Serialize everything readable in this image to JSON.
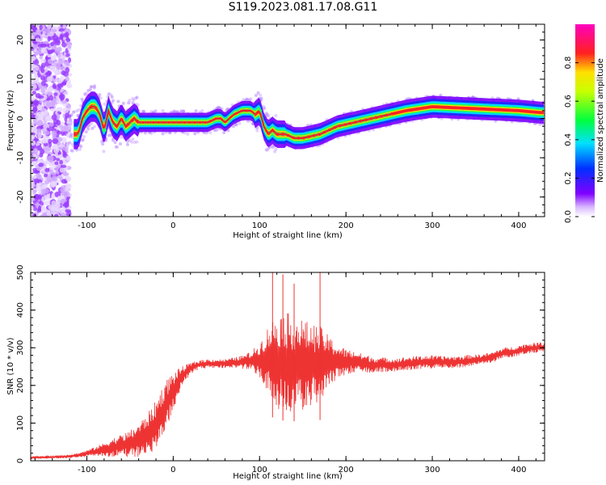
{
  "title": "S119.2023.081.17.08.G11",
  "chart_data": [
    {
      "type": "heatmap",
      "xlabel": "Height of straight line (km)",
      "ylabel": "Frequency (Hz)",
      "xlim": [
        -165,
        430
      ],
      "ylim": [
        -25,
        24
      ],
      "xticks": [
        -100,
        0,
        100,
        200,
        300,
        400
      ],
      "yticks": [
        -20,
        -10,
        0,
        10,
        20
      ],
      "colorbar": {
        "label": "Normalized spectral amplitude",
        "range": [
          0,
          1
        ],
        "ticks": [
          "0.0",
          "0.2",
          "0.4",
          "0.6",
          "0.8"
        ],
        "tick_values": [
          0.0,
          0.2,
          0.4,
          0.6,
          0.8
        ],
        "colormap": "rainbow (white to violet to blue to cyan to green to yellow to red to pink)"
      },
      "ridge_line": {
        "x": [
          -110,
          -105,
          -100,
          -95,
          -90,
          -85,
          -80,
          -75,
          -70,
          -65,
          -60,
          -55,
          -50,
          -45,
          -40,
          -30,
          0,
          40,
          50,
          55,
          60,
          70,
          80,
          90,
          95,
          100,
          105,
          110,
          115,
          120,
          130,
          140,
          150,
          170,
          190,
          210,
          230,
          250,
          270,
          300,
          350,
          400,
          425
        ],
        "y": [
          -4,
          0,
          2,
          3,
          3,
          1,
          -3,
          2,
          -1,
          -2,
          0,
          -2,
          -1,
          0,
          -1,
          -1,
          -1,
          -1,
          0,
          0,
          -1,
          1,
          2,
          2,
          1,
          2,
          -2,
          -4,
          -3,
          -4,
          -4,
          -5,
          -5,
          -4,
          -2,
          -1,
          0,
          1,
          2,
          3,
          2.5,
          2,
          1.5
        ]
      }
    },
    {
      "type": "line",
      "xlabel": "Height of straight line (km)",
      "ylabel": "SNR (10 * v/v)",
      "xlim": [
        -165,
        430
      ],
      "ylim": [
        0,
        500
      ],
      "xticks": [
        -100,
        0,
        100,
        200,
        300,
        400
      ],
      "yticks": [
        0,
        100,
        200,
        300,
        400,
        500
      ],
      "color": "#ee3333",
      "series": [
        {
          "x": [
            -165,
            -140,
            -120,
            -110,
            -100,
            -90,
            -80,
            -70,
            -60,
            -50,
            -40,
            -30,
            -20,
            -10,
            0,
            10,
            20,
            30,
            40,
            50,
            60,
            70,
            80,
            90,
            100,
            110,
            120,
            130,
            140,
            150,
            160,
            170,
            180,
            190,
            200,
            210,
            220,
            230,
            240,
            250,
            260,
            270,
            280,
            290,
            300,
            310,
            320,
            330,
            340,
            350,
            360,
            370,
            380,
            390,
            400,
            410,
            420,
            430
          ],
          "mean": [
            8,
            10,
            12,
            15,
            20,
            25,
            30,
            35,
            40,
            45,
            55,
            70,
            95,
            140,
            185,
            225,
            245,
            255,
            258,
            258,
            258,
            260,
            262,
            265,
            268,
            268,
            262,
            255,
            255,
            255,
            255,
            258,
            262,
            264,
            262,
            262,
            258,
            255,
            255,
            255,
            255,
            258,
            260,
            262,
            262,
            262,
            262,
            262,
            265,
            268,
            270,
            275,
            285,
            288,
            292,
            298,
            300,
            302
          ],
          "spread": [
            4,
            4,
            5,
            6,
            8,
            12,
            18,
            25,
            30,
            35,
            45,
            55,
            65,
            70,
            50,
            25,
            15,
            12,
            12,
            12,
            12,
            14,
            18,
            25,
            45,
            90,
            130,
            140,
            130,
            120,
            110,
            100,
            70,
            45,
            35,
            30,
            25,
            22,
            20,
            18,
            18,
            18,
            18,
            18,
            18,
            16,
            16,
            16,
            16,
            14,
            14,
            14,
            14,
            14,
            14,
            14,
            14,
            14
          ],
          "peaks": {
            "x": [
              115,
              127,
              140,
              170
            ],
            "y": [
              500,
              495,
              470,
              500
            ]
          }
        }
      ]
    }
  ]
}
